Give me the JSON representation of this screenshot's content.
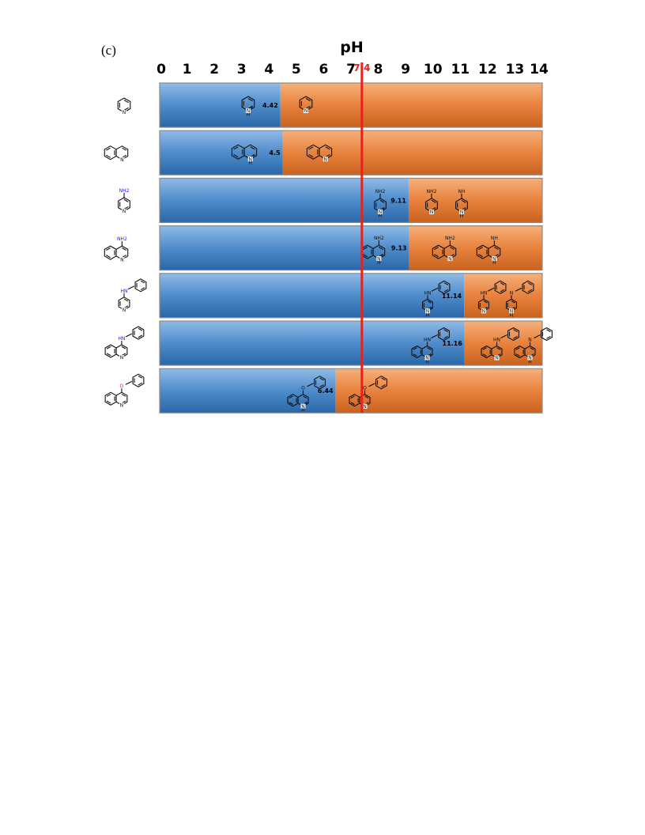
{
  "panel_label": "(c)",
  "chart_data": {
    "type": "bar",
    "orientation": "horizontal",
    "title": "pH",
    "x_ticks": [
      "0",
      "1",
      "2",
      "3",
      "4",
      "5",
      "6",
      "7",
      "8",
      "9",
      "10",
      "11",
      "12",
      "13",
      "14"
    ],
    "xlim": [
      0,
      14
    ],
    "reference_line": {
      "value": 7.4,
      "label": "7.4",
      "color": "#e8211a"
    },
    "colors": {
      "protonated": "#3d7fc0",
      "neutral": "#e8823e"
    },
    "rows": [
      {
        "compound": "pyridine",
        "pKa": 4.42,
        "pKa_label": "4.42"
      },
      {
        "compound": "quinoline",
        "pKa": 4.5,
        "pKa_label": "4.5"
      },
      {
        "compound": "4-aminopyridine",
        "pKa": 9.11,
        "pKa_label": "9.11"
      },
      {
        "compound": "4-aminoquinoline",
        "pKa": 9.13,
        "pKa_label": "9.13"
      },
      {
        "compound": "4-anilinopyridine",
        "pKa": 11.14,
        "pKa_label": "11.14"
      },
      {
        "compound": "4-anilinoquinoline",
        "pKa": 11.16,
        "pKa_label": "11.16"
      },
      {
        "compound": "4-phenoxyquinoline",
        "pKa": 6.44,
        "pKa_label": "6.44"
      }
    ]
  },
  "atoms": {
    "N": "N",
    "NH": "NH",
    "NH2": "NH2",
    "H": "H",
    "HN": "HN",
    "O": "O",
    "plus": "+"
  }
}
